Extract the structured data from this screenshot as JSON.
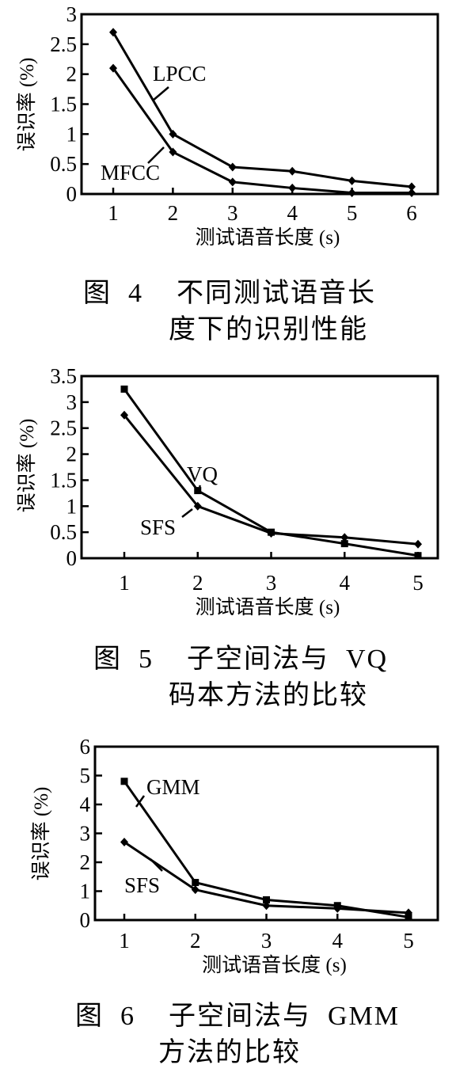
{
  "chart_data": [
    {
      "type": "line",
      "figure": "fig1",
      "categories": [
        1,
        2,
        3,
        4,
        5,
        6
      ],
      "series": [
        {
          "name": "LPCC",
          "values": [
            2.7,
            1.0,
            0.45,
            0.38,
            0.22,
            0.12
          ]
        },
        {
          "name": "MFCC",
          "values": [
            2.1,
            0.7,
            0.2,
            0.1,
            0.02,
            0.02
          ]
        }
      ],
      "ylim": [
        0,
        3
      ],
      "yticks": [
        0,
        0.5,
        1,
        1.5,
        2,
        2.5,
        3
      ],
      "ytick_labels": [
        "0",
        "0.5",
        "1",
        "1.5",
        "2",
        "2.5",
        "3"
      ],
      "xtick_labels": [
        "1",
        "2",
        "3",
        "4",
        "5",
        "6"
      ],
      "ylabel": "误识率 (%)",
      "xlabel": "测试语音长度 (s)",
      "caption_line1": "图  4    不同测试语音长",
      "caption_line2": "度下的识别性能",
      "grid": false
    },
    {
      "type": "line",
      "figure": "fig2",
      "categories": [
        1,
        2,
        3,
        4,
        5
      ],
      "series": [
        {
          "name": "VQ",
          "values": [
            3.25,
            1.3,
            0.5,
            0.28,
            0.05
          ]
        },
        {
          "name": "SFS",
          "values": [
            2.75,
            1.0,
            0.48,
            0.4,
            0.27
          ]
        }
      ],
      "ylim": [
        0,
        3.5
      ],
      "yticks": [
        0,
        0.5,
        1,
        1.5,
        2,
        2.5,
        3,
        3.5
      ],
      "ytick_labels": [
        "0",
        "0.5",
        "1",
        "1.5",
        "2",
        "2.5",
        "3",
        "3.5"
      ],
      "xtick_labels": [
        "1",
        "2",
        "3",
        "4",
        "5"
      ],
      "ylabel": "误识率 (%)",
      "xlabel": "测试语音长度 (s)",
      "caption_line1": "图  5    子空间法与  VQ",
      "caption_line2": "码本方法的比较",
      "grid": false
    },
    {
      "type": "line",
      "figure": "fig3",
      "categories": [
        1,
        2,
        3,
        4,
        5
      ],
      "series": [
        {
          "name": "GMM",
          "values": [
            4.8,
            1.3,
            0.7,
            0.5,
            0.1
          ]
        },
        {
          "name": "SFS",
          "values": [
            2.7,
            1.05,
            0.5,
            0.4,
            0.25
          ]
        }
      ],
      "ylim": [
        0,
        6
      ],
      "yticks": [
        0,
        1,
        2,
        3,
        4,
        5,
        6
      ],
      "ytick_labels": [
        "0",
        "1",
        "2",
        "3",
        "4",
        "5",
        "6"
      ],
      "xtick_labels": [
        "1",
        "2",
        "3",
        "4",
        "5"
      ],
      "ylabel": "误识率 (%)",
      "xlabel": "测试语音长度 (s)",
      "caption_line1": "图  6    子空间法与  GMM",
      "caption_line2": "方法的比较",
      "grid": false
    }
  ]
}
